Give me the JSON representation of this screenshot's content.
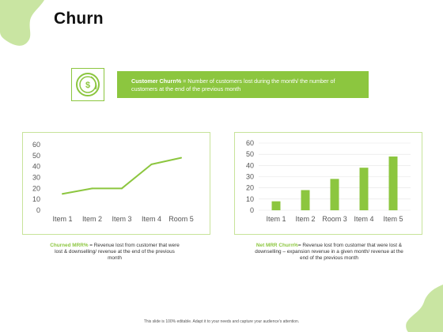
{
  "title": "Churn",
  "definition": {
    "term": "Customer Churn%",
    "text": " = Number of customers lost during the month/ the number of customers at the end of the previous month",
    "icon": "dollar-coins-icon"
  },
  "captions": {
    "left": {
      "term": "Churned MRR%",
      "text": " = Revenue lost from customer that were lost & downselling/ revenue at the end of the previous month"
    },
    "right": {
      "term": "Net MRR Churn%",
      "text": "= Revenue lost from customer that were lost & downselling – expansion revenue in a given month/ revenue at the end of the previous month"
    }
  },
  "footer": "This slide is 100% editable. Adapt it to your needs and capture your audience's attention.",
  "colors": {
    "accent": "#8cc63f",
    "blob": "#c9e5a2",
    "border": "#c7e39a"
  },
  "chart_data": [
    {
      "type": "line",
      "categories": [
        "Item 1",
        "Item 2",
        "Item 3",
        "Item 4",
        "Room 5"
      ],
      "series": [
        {
          "values": [
            15,
            20,
            20,
            42,
            48
          ]
        }
      ],
      "yticks": [
        0,
        10,
        20,
        30,
        40,
        50,
        60
      ],
      "ylim": [
        0,
        60
      ],
      "grid": false
    },
    {
      "type": "bar",
      "categories": [
        "Item 1",
        "Item 2",
        "Room 3",
        "Item 4",
        "Item 5"
      ],
      "series": [
        {
          "values": [
            8,
            18,
            28,
            38,
            48
          ]
        }
      ],
      "yticks": [
        0,
        10,
        20,
        30,
        40,
        50,
        60
      ],
      "ylim": [
        0,
        60
      ],
      "grid": true
    }
  ]
}
